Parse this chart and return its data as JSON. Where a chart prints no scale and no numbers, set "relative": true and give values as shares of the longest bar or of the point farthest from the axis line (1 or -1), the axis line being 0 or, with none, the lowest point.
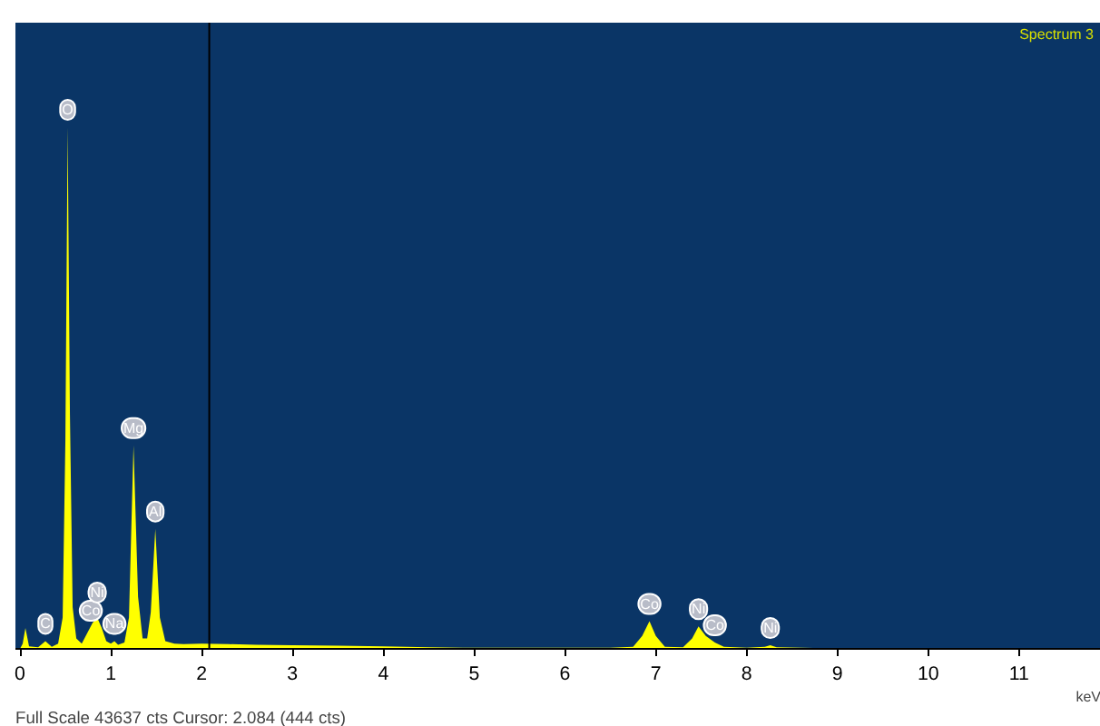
{
  "chart_data": {
    "type": "area",
    "title": "Spectrum 3",
    "xlabel": "keV",
    "relative": true,
    "tick_labels": "x",
    "grid": false,
    "xlim": [
      -0.05,
      11.9
    ],
    "xticks": [
      0,
      1,
      2,
      3,
      4,
      5,
      6,
      7,
      8,
      9,
      10,
      11
    ],
    "series": [
      {
        "color": "#ffff00",
        "x": [
          0.0,
          0.03,
          0.06,
          0.1,
          0.2,
          0.28,
          0.35,
          0.42,
          0.47,
          0.5,
          0.525,
          0.55,
          0.58,
          0.62,
          0.68,
          0.74,
          0.8,
          0.85,
          0.9,
          0.95,
          1.0,
          1.04,
          1.08,
          1.15,
          1.2,
          1.25,
          1.3,
          1.35,
          1.4,
          1.44,
          1.49,
          1.54,
          1.6,
          1.7,
          1.8,
          2.0,
          2.3,
          2.6,
          3.0,
          3.5,
          4.0,
          4.5,
          5.0,
          5.5,
          6.0,
          6.5,
          6.75,
          6.85,
          6.93,
          7.0,
          7.1,
          7.3,
          7.4,
          7.47,
          7.55,
          7.65,
          7.75,
          8.0,
          8.2,
          8.26,
          8.33,
          8.6,
          9.0,
          10.0,
          11.0,
          11.9
        ],
        "values": [
          0.0,
          0.01,
          0.04,
          0.005,
          0.003,
          0.015,
          0.004,
          0.01,
          0.06,
          0.4,
          1.0,
          0.45,
          0.08,
          0.02,
          0.01,
          0.03,
          0.05,
          0.06,
          0.04,
          0.015,
          0.01,
          0.015,
          0.008,
          0.012,
          0.06,
          0.39,
          0.1,
          0.02,
          0.02,
          0.07,
          0.23,
          0.06,
          0.015,
          0.01,
          0.009,
          0.01,
          0.009,
          0.008,
          0.007,
          0.006,
          0.005,
          0.003,
          0.002,
          0.002,
          0.002,
          0.002,
          0.004,
          0.025,
          0.053,
          0.025,
          0.004,
          0.003,
          0.02,
          0.043,
          0.025,
          0.012,
          0.004,
          0.002,
          0.004,
          0.007,
          0.003,
          0.002,
          0.001,
          0.001,
          0.0005,
          0.0005
        ]
      }
    ],
    "ref_lines": [
      {
        "axis": "x",
        "value": 2.084,
        "color": "#000000"
      }
    ],
    "annotations": [
      {
        "text": "C",
        "x": 0.28,
        "y": 0.015
      },
      {
        "text": "O",
        "x": 0.525,
        "y": 1.0
      },
      {
        "text": "Co",
        "x": 0.78,
        "y": 0.04
      },
      {
        "text": "Ni",
        "x": 0.85,
        "y": 0.075
      },
      {
        "text": "Na",
        "x": 1.04,
        "y": 0.015
      },
      {
        "text": "Mg",
        "x": 1.25,
        "y": 0.39
      },
      {
        "text": "Al",
        "x": 1.49,
        "y": 0.23
      },
      {
        "text": "Co",
        "x": 6.93,
        "y": 0.053
      },
      {
        "text": "Ni",
        "x": 7.47,
        "y": 0.043
      },
      {
        "text": "Co",
        "x": 7.65,
        "y": 0.012
      },
      {
        "text": "Ni",
        "x": 8.26,
        "y": 0.007
      },
      "Full Scale 43637 cts Cursor: 2.084  (444 cts)"
    ]
  }
}
